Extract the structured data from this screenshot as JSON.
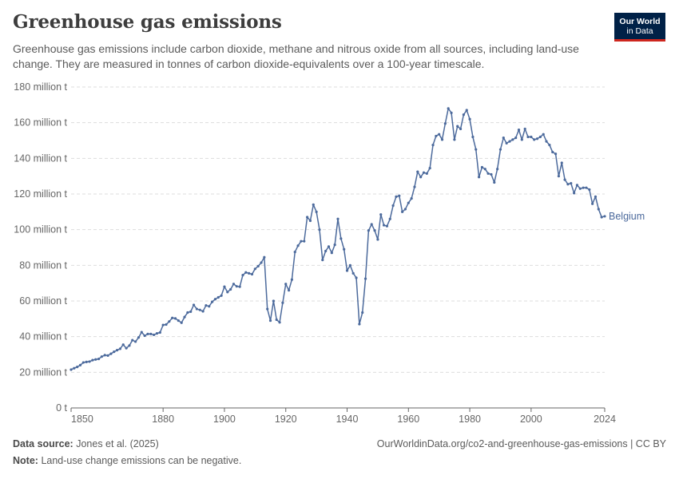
{
  "header": {
    "title": "Greenhouse gas emissions",
    "subtitle": "Greenhouse gas emissions include carbon dioxide, methane and nitrous oxide from all sources, including land-use change. They are measured in tonnes of carbon dioxide-equivalents over a 100-year timescale.",
    "logo_line1": "Our World",
    "logo_line2": "in Data"
  },
  "footer": {
    "source_label": "Data source:",
    "source_text": "Jones et al. (2025)",
    "url_text": "OurWorldinData.org/co2-and-greenhouse-gas-emissions | CC BY",
    "note_label": "Note:",
    "note_text": "Land-use change emissions can be negative."
  },
  "colors": {
    "series": "#4c6a9c",
    "grid": "#dddddd",
    "axis": "#666666"
  },
  "chart_data": {
    "type": "line",
    "x_ticks": [
      1850,
      1880,
      1900,
      1920,
      1940,
      1960,
      1980,
      2000,
      2024
    ],
    "x_tick_labels": [
      "1850",
      "1880",
      "1900",
      "1920",
      "1940",
      "1960",
      "1980",
      "2000",
      "2024"
    ],
    "y_ticks": [
      0,
      20,
      40,
      60,
      80,
      100,
      120,
      140,
      160,
      180
    ],
    "y_tick_labels": [
      "0 t",
      "20 million t",
      "40 million t",
      "60 million t",
      "80 million t",
      "100 million t",
      "120 million t",
      "140 million t",
      "160 million t",
      "180 million t"
    ],
    "xlim": [
      1850,
      2024
    ],
    "ylim": [
      0,
      180
    ],
    "grid": "horizontal dashed",
    "series": [
      {
        "name": "Belgium",
        "points": [
          [
            1850,
            21.5
          ],
          [
            1851,
            22.3
          ],
          [
            1852,
            23.0
          ],
          [
            1853,
            24.0
          ],
          [
            1854,
            25.5
          ],
          [
            1855,
            25.8
          ],
          [
            1856,
            26.0
          ],
          [
            1857,
            26.8
          ],
          [
            1858,
            27.2
          ],
          [
            1859,
            27.5
          ],
          [
            1860,
            28.8
          ],
          [
            1861,
            29.6
          ],
          [
            1862,
            29.4
          ],
          [
            1863,
            30.4
          ],
          [
            1864,
            31.5
          ],
          [
            1865,
            32.4
          ],
          [
            1866,
            33.2
          ],
          [
            1867,
            35.5
          ],
          [
            1868,
            33.5
          ],
          [
            1869,
            35.0
          ],
          [
            1870,
            38.0
          ],
          [
            1871,
            37.2
          ],
          [
            1872,
            39.5
          ],
          [
            1873,
            42.5
          ],
          [
            1874,
            40.5
          ],
          [
            1875,
            41.5
          ],
          [
            1876,
            41.5
          ],
          [
            1877,
            41.0
          ],
          [
            1878,
            41.8
          ],
          [
            1879,
            42.3
          ],
          [
            1880,
            46.5
          ],
          [
            1881,
            46.8
          ],
          [
            1882,
            48.5
          ],
          [
            1883,
            50.5
          ],
          [
            1884,
            50.2
          ],
          [
            1885,
            49.0
          ],
          [
            1886,
            47.8
          ],
          [
            1887,
            51.0
          ],
          [
            1888,
            53.5
          ],
          [
            1889,
            54.0
          ],
          [
            1890,
            57.8
          ],
          [
            1891,
            55.5
          ],
          [
            1892,
            55.0
          ],
          [
            1893,
            54.2
          ],
          [
            1894,
            57.5
          ],
          [
            1895,
            57.0
          ],
          [
            1896,
            59.5
          ],
          [
            1897,
            61.0
          ],
          [
            1898,
            62.0
          ],
          [
            1899,
            63.0
          ],
          [
            1900,
            68.0
          ],
          [
            1901,
            65.0
          ],
          [
            1902,
            66.5
          ],
          [
            1903,
            69.5
          ],
          [
            1904,
            68.2
          ],
          [
            1905,
            68.0
          ],
          [
            1906,
            74.5
          ],
          [
            1907,
            76.0
          ],
          [
            1908,
            75.5
          ],
          [
            1909,
            75.0
          ],
          [
            1910,
            78.0
          ],
          [
            1911,
            79.5
          ],
          [
            1912,
            81.5
          ],
          [
            1913,
            84.5
          ],
          [
            1914,
            55.5
          ],
          [
            1915,
            49.0
          ],
          [
            1916,
            60.0
          ],
          [
            1917,
            49.5
          ],
          [
            1918,
            48.0
          ],
          [
            1919,
            59.0
          ],
          [
            1920,
            69.5
          ],
          [
            1921,
            66.0
          ],
          [
            1922,
            72.0
          ],
          [
            1923,
            87.5
          ],
          [
            1924,
            91.0
          ],
          [
            1925,
            93.5
          ],
          [
            1926,
            93.5
          ],
          [
            1927,
            107.0
          ],
          [
            1928,
            105.0
          ],
          [
            1929,
            114.0
          ],
          [
            1930,
            110.0
          ],
          [
            1931,
            100.0
          ],
          [
            1932,
            83.0
          ],
          [
            1933,
            88.0
          ],
          [
            1934,
            90.5
          ],
          [
            1935,
            87.0
          ],
          [
            1936,
            91.5
          ],
          [
            1937,
            106.0
          ],
          [
            1938,
            95.0
          ],
          [
            1939,
            89.0
          ],
          [
            1940,
            77.0
          ],
          [
            1941,
            80.0
          ],
          [
            1942,
            75.5
          ],
          [
            1943,
            73.0
          ],
          [
            1944,
            47.0
          ],
          [
            1945,
            53.5
          ],
          [
            1946,
            72.5
          ],
          [
            1947,
            99.5
          ],
          [
            1948,
            103.0
          ],
          [
            1949,
            99.5
          ],
          [
            1950,
            94.5
          ],
          [
            1951,
            108.5
          ],
          [
            1952,
            102.5
          ],
          [
            1953,
            102.0
          ],
          [
            1954,
            106.0
          ],
          [
            1955,
            113.5
          ],
          [
            1956,
            118.5
          ],
          [
            1957,
            119.0
          ],
          [
            1958,
            110.0
          ],
          [
            1959,
            111.5
          ],
          [
            1960,
            115.0
          ],
          [
            1961,
            117.5
          ],
          [
            1962,
            124.0
          ],
          [
            1963,
            132.5
          ],
          [
            1964,
            129.5
          ],
          [
            1965,
            132.0
          ],
          [
            1966,
            131.5
          ],
          [
            1967,
            134.5
          ],
          [
            1968,
            147.5
          ],
          [
            1969,
            152.5
          ],
          [
            1970,
            153.5
          ],
          [
            1971,
            150.5
          ],
          [
            1972,
            159.5
          ],
          [
            1973,
            168.0
          ],
          [
            1974,
            165.5
          ],
          [
            1975,
            150.5
          ],
          [
            1976,
            158.0
          ],
          [
            1977,
            156.5
          ],
          [
            1978,
            164.5
          ],
          [
            1979,
            167.0
          ],
          [
            1980,
            162.0
          ],
          [
            1981,
            152.0
          ],
          [
            1982,
            145.0
          ],
          [
            1983,
            129.5
          ],
          [
            1984,
            135.0
          ],
          [
            1985,
            134.0
          ],
          [
            1986,
            131.5
          ],
          [
            1987,
            131.0
          ],
          [
            1988,
            126.5
          ],
          [
            1989,
            134.0
          ],
          [
            1990,
            145.0
          ],
          [
            1991,
            151.5
          ],
          [
            1992,
            148.5
          ],
          [
            1993,
            149.5
          ],
          [
            1994,
            150.5
          ],
          [
            1995,
            151.5
          ],
          [
            1996,
            156.0
          ],
          [
            1997,
            150.5
          ],
          [
            1998,
            156.5
          ],
          [
            1999,
            152.0
          ],
          [
            2000,
            152.0
          ],
          [
            2001,
            150.5
          ],
          [
            2002,
            151.0
          ],
          [
            2003,
            152.0
          ],
          [
            2004,
            153.5
          ],
          [
            2005,
            149.5
          ],
          [
            2006,
            147.5
          ],
          [
            2007,
            143.5
          ],
          [
            2008,
            142.5
          ],
          [
            2009,
            130.0
          ],
          [
            2010,
            137.5
          ],
          [
            2011,
            128.0
          ],
          [
            2012,
            125.5
          ],
          [
            2013,
            126.0
          ],
          [
            2014,
            120.5
          ],
          [
            2015,
            125.0
          ],
          [
            2016,
            123.0
          ],
          [
            2017,
            123.5
          ],
          [
            2018,
            123.5
          ],
          [
            2019,
            122.5
          ],
          [
            2020,
            114.5
          ],
          [
            2021,
            118.5
          ],
          [
            2022,
            111.5
          ],
          [
            2023,
            107.0
          ],
          [
            2024,
            107.5
          ]
        ]
      }
    ]
  }
}
